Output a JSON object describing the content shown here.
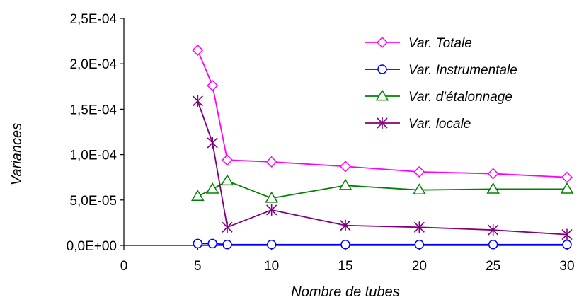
{
  "chart_data": {
    "type": "line",
    "xlabel": "Nombre de tubes",
    "ylabel": "Variances",
    "xlim": [
      0,
      30
    ],
    "ylim": [
      0,
      0.00025
    ],
    "x_ticks": [
      0,
      5,
      10,
      15,
      20,
      25,
      30
    ],
    "x_tick_labels": [
      "0",
      "5",
      "10",
      "15",
      "20",
      "25",
      "30"
    ],
    "y_ticks": [
      0,
      5e-05,
      0.0001,
      0.00015,
      0.0002,
      0.00025
    ],
    "y_tick_labels": [
      "0,0E+00",
      "5,0E-05",
      "1,0E-04",
      "1,5E-04",
      "2,0E-04",
      "2,5E-04"
    ],
    "grid": false,
    "legend_position": "top-right",
    "x": [
      5,
      6,
      7,
      10,
      15,
      20,
      25,
      30
    ],
    "series": [
      {
        "name": "Var. Totale",
        "color": "#ff00ff",
        "marker": "diamond",
        "values": [
          0.000215,
          0.000176,
          9.4e-05,
          9.2e-05,
          8.7e-05,
          8.1e-05,
          7.9e-05,
          7.5e-05
        ]
      },
      {
        "name": "Var. Instrumentale",
        "color": "#0000ff",
        "marker": "circle",
        "values": [
          2e-06,
          2e-06,
          1e-06,
          1e-06,
          1e-06,
          1e-06,
          1e-06,
          1e-06
        ]
      },
      {
        "name": "Var. d'étalonnage",
        "color": "#008000",
        "marker": "triangle",
        "values": [
          5.4e-05,
          6.2e-05,
          7.1e-05,
          5.2e-05,
          6.6e-05,
          6.1e-05,
          6.2e-05,
          6.2e-05
        ]
      },
      {
        "name": "Var. locale",
        "color": "#800080",
        "marker": "asterisk",
        "values": [
          0.000159,
          0.000113,
          2e-05,
          3.9e-05,
          2.2e-05,
          2e-05,
          1.7e-05,
          1.2e-05
        ]
      }
    ]
  }
}
